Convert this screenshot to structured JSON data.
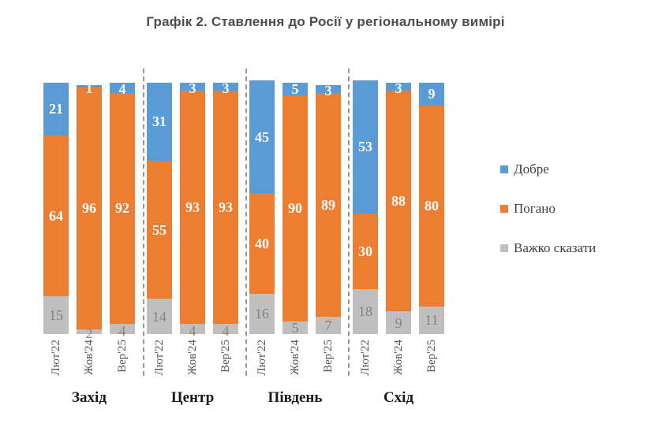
{
  "chart_data": {
    "type": "bar",
    "stacked": true,
    "normalized": "percent",
    "title": "Графік 2. Ставлення до Росії у регіональному вимірі",
    "xlabel": "",
    "ylabel": "",
    "ylim": [
      0,
      100
    ],
    "legend_position": "right",
    "grid": false,
    "groups": [
      {
        "name": "Захід",
        "categories": [
          "Лют'22",
          "Жов'24",
          "Вер'25"
        ]
      },
      {
        "name": "Центр",
        "categories": [
          "Лют'22",
          "Жов'24",
          "Вер'25"
        ]
      },
      {
        "name": "Південь",
        "categories": [
          "Лют'22",
          "Жов'24",
          "Вер'25"
        ]
      },
      {
        "name": "Схід",
        "categories": [
          "Лют'22",
          "Жов'24",
          "Вер'25"
        ]
      }
    ],
    "series": [
      {
        "name": "Добре",
        "color": "#5B9BD5",
        "label_color": "#FFFFFF",
        "values": [
          [
            21,
            1,
            4
          ],
          [
            31,
            3,
            3
          ],
          [
            45,
            5,
            3
          ],
          [
            53,
            3,
            9
          ]
        ]
      },
      {
        "name": "Погано",
        "color": "#ED7D31",
        "label_color": "#FFFFFF",
        "values": [
          [
            64,
            96,
            92
          ],
          [
            55,
            93,
            93
          ],
          [
            40,
            90,
            89
          ],
          [
            30,
            88,
            80
          ]
        ]
      },
      {
        "name": "Важко сказати",
        "color": "#BFBFBF",
        "label_color": "#848484",
        "values": [
          [
            15,
            2,
            4
          ],
          [
            14,
            4,
            4
          ],
          [
            16,
            5,
            7
          ],
          [
            18,
            9,
            11
          ]
        ]
      }
    ],
    "stack_order_top_to_bottom": [
      "Добре",
      "Погано",
      "Важко сказати"
    ]
  }
}
